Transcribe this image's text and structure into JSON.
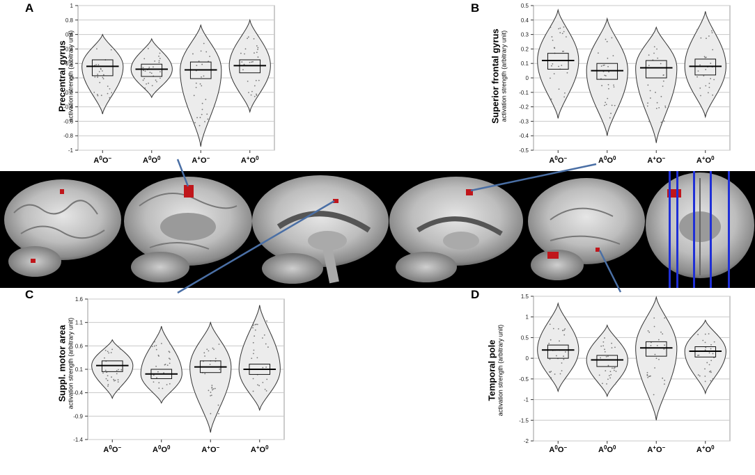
{
  "panels": [
    {
      "letter": "A",
      "title": "Precentral gyrus",
      "subtitle": "activation strength (arbitrary unit)"
    },
    {
      "letter": "B",
      "title": "Superior frontal gyrus",
      "subtitle": "activation strength (arbitrary unit)"
    },
    {
      "letter": "C",
      "title": "Suppl. motor area",
      "subtitle": "activation strength (arbitrary unit)"
    },
    {
      "letter": "D",
      "title": "Temporal pole",
      "subtitle": "activation strength (arbitrary unit)"
    }
  ],
  "chart_data": [
    {
      "type": "violin",
      "panel": "A",
      "categories": [
        "A0O−",
        "A0O0",
        "A+O−",
        "A+O0"
      ],
      "ylim": [
        -1,
        1
      ],
      "yticks": [
        1,
        0.8,
        0.6,
        0.4,
        0.2,
        0,
        -0.2,
        -0.4,
        -0.6,
        -0.8,
        -1
      ],
      "grid": true,
      "series": [
        {
          "category": "A0O−",
          "min": -0.5,
          "max": 0.6,
          "q1": 0.03,
          "q3": 0.25,
          "mean": 0.16
        },
        {
          "category": "A0O0",
          "min": -0.27,
          "max": 0.54,
          "q1": 0.02,
          "q3": 0.19,
          "mean": 0.12
        },
        {
          "category": "A+O−",
          "min": -0.95,
          "max": 0.73,
          "q1": -0.01,
          "q3": 0.22,
          "mean": 0.11
        },
        {
          "category": "A+O0",
          "min": -0.47,
          "max": 0.8,
          "q1": 0.07,
          "q3": 0.25,
          "mean": 0.17
        }
      ]
    },
    {
      "type": "violin",
      "panel": "B",
      "categories": [
        "A0O−",
        "A0O0",
        "A+O−",
        "A+O0"
      ],
      "ylim": [
        -0.5,
        0.5
      ],
      "yticks": [
        0.5,
        0.4,
        0.3,
        0.2,
        0.1,
        0,
        -0.1,
        -0.2,
        -0.3,
        -0.4,
        -0.5
      ],
      "grid": true,
      "series": [
        {
          "category": "A0O−",
          "min": -0.28,
          "max": 0.47,
          "q1": 0.06,
          "q3": 0.17,
          "mean": 0.12
        },
        {
          "category": "A0O0",
          "min": -0.4,
          "max": 0.41,
          "q1": -0.01,
          "q3": 0.1,
          "mean": 0.05
        },
        {
          "category": "A+O−",
          "min": -0.45,
          "max": 0.35,
          "q1": 0.0,
          "q3": 0.12,
          "mean": 0.07
        },
        {
          "category": "A+O0",
          "min": -0.27,
          "max": 0.46,
          "q1": 0.02,
          "q3": 0.13,
          "mean": 0.08
        }
      ]
    },
    {
      "type": "violin",
      "panel": "C",
      "categories": [
        "A0O−",
        "A0O0",
        "A+O−",
        "A+O0"
      ],
      "ylim": [
        -1.4,
        1.6
      ],
      "yticks": [
        1.6,
        1.1,
        0.6,
        0.1,
        -0.4,
        -0.9,
        -1.4
      ],
      "grid": true,
      "series": [
        {
          "category": "A0O−",
          "min": -0.52,
          "max": 0.73,
          "q1": 0.05,
          "q3": 0.28,
          "mean": 0.18
        },
        {
          "category": "A0O0",
          "min": -0.62,
          "max": 1.02,
          "q1": -0.1,
          "q3": 0.1,
          "mean": 0.0
        },
        {
          "category": "A+O−",
          "min": -1.25,
          "max": 1.1,
          "q1": 0.03,
          "q3": 0.28,
          "mean": 0.15
        },
        {
          "category": "A+O0",
          "min": -0.77,
          "max": 1.47,
          "q1": -0.01,
          "q3": 0.21,
          "mean": 0.1
        }
      ]
    },
    {
      "type": "violin",
      "panel": "D",
      "categories": [
        "A0O−",
        "A0O0",
        "A+O−",
        "A+O0"
      ],
      "ylim": [
        -2,
        1.5
      ],
      "yticks": [
        1.5,
        1,
        0.5,
        0,
        -0.5,
        -1,
        -1.5,
        -2
      ],
      "grid": true,
      "series": [
        {
          "category": "A0O−",
          "min": -0.8,
          "max": 1.33,
          "q1": 0.0,
          "q3": 0.32,
          "mean": 0.2
        },
        {
          "category": "A0O0",
          "min": -0.92,
          "max": 0.8,
          "q1": -0.2,
          "q3": 0.07,
          "mean": -0.04
        },
        {
          "category": "A+O−",
          "min": -1.5,
          "max": 1.48,
          "q1": 0.05,
          "q3": 0.4,
          "mean": 0.25
        },
        {
          "category": "A+O0",
          "min": -0.85,
          "max": 0.92,
          "q1": 0.03,
          "q3": 0.28,
          "mean": 0.17
        }
      ]
    }
  ],
  "colors": {
    "violin_fill": "#ececec",
    "violin_stroke": "#333333",
    "grid": "#c8c8c8",
    "activation": "#c0161b",
    "connector": "#4a6fa5",
    "slice_lines": "#1f2fd6",
    "strip_bg": "#000000"
  }
}
